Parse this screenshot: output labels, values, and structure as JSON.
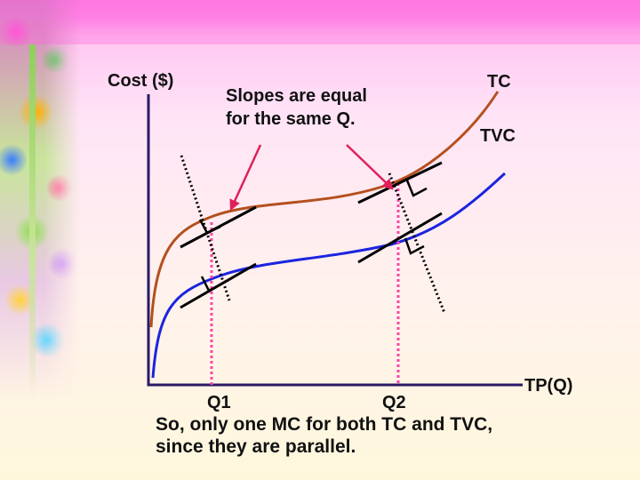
{
  "axis": {
    "y_label": "Cost ($)",
    "x_label": "TP(Q)"
  },
  "curves": {
    "tc": {
      "label": "TC",
      "color": "#b4501e"
    },
    "tvc": {
      "label": "TVC",
      "color": "#1b24e0"
    }
  },
  "annotation": {
    "line1": "Slopes are equal",
    "line2": "for the same Q."
  },
  "quantities": {
    "q1": "Q1",
    "q2": "Q2"
  },
  "caption": {
    "line1": "So, only one MC for both TC and TVC,",
    "line2": "since they are parallel."
  },
  "colors": {
    "axis": "#2a1a66",
    "guide": "#ff44aa",
    "tangent": "#000000",
    "arrow": "#e0205a"
  }
}
